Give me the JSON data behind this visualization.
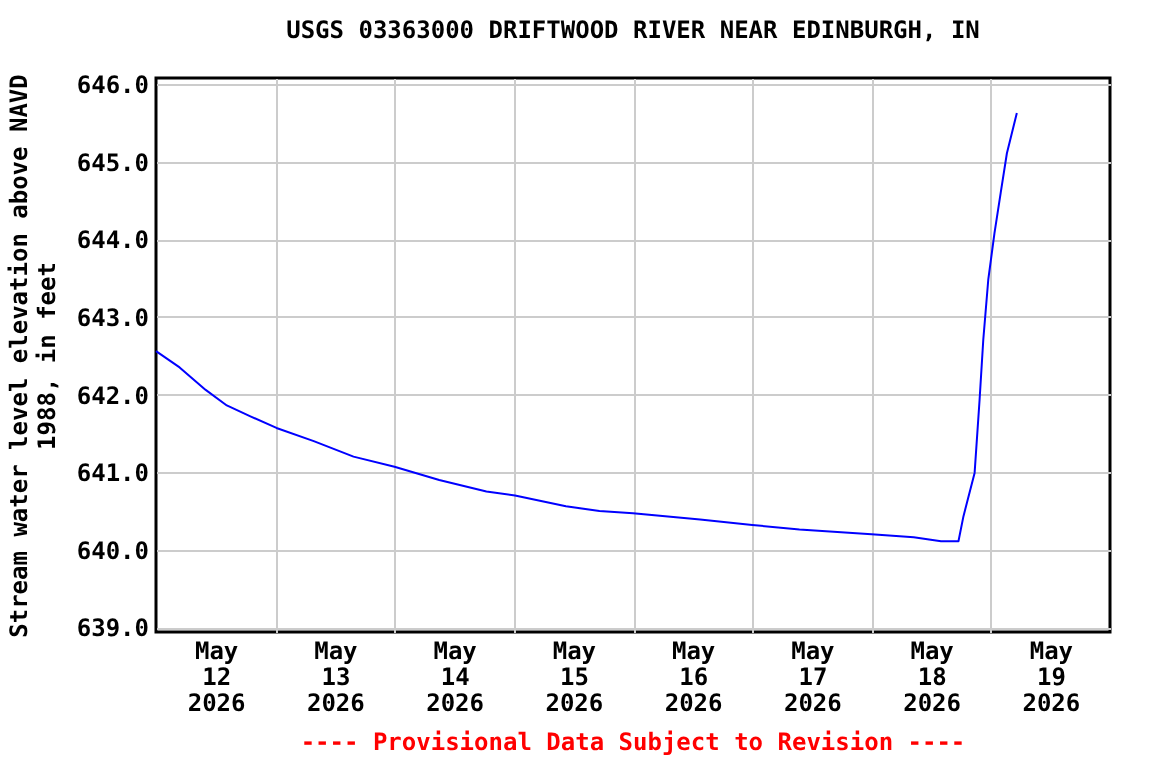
{
  "chart_data": {
    "type": "line",
    "title": "USGS 03363000 DRIFTWOOD RIVER NEAR EDINBURGH, IN",
    "ylabel": "Stream water level elevation above NAVD 1988, in feet",
    "annotations": [
      "---- Provisional Data Subject to Revision ----"
    ],
    "xlim": [
      "2026-05-12T00:00",
      "2026-05-20T00:00"
    ],
    "xticks": [
      {
        "value": "2026-05-12T12:00",
        "label": "May 12 2026"
      },
      {
        "value": "2026-05-13T00:00",
        "label": null
      },
      {
        "value": "2026-05-13T12:00",
        "label": "May 13 2026"
      },
      {
        "value": "2026-05-14T00:00",
        "label": null
      },
      {
        "value": "2026-05-14T12:00",
        "label": "May 14 2026"
      },
      {
        "value": "2026-05-15T00:00",
        "label": null
      },
      {
        "value": "2026-05-15T12:00",
        "label": "May 15 2026"
      },
      {
        "value": "2026-05-16T00:00",
        "label": null
      },
      {
        "value": "2026-05-16T12:00",
        "label": "May 16 2026"
      },
      {
        "value": "2026-05-17T00:00",
        "label": null
      },
      {
        "value": "2026-05-17T12:00",
        "label": "May 17 2026"
      },
      {
        "value": "2026-05-18T00:00",
        "label": null
      },
      {
        "value": "2026-05-18T12:00",
        "label": "May 18 2026"
      },
      {
        "value": "2026-05-19T00:00",
        "label": null
      },
      {
        "value": "2026-05-19T12:00",
        "label": "May 19 2026"
      }
    ],
    "ylim": [
      638.94,
      646.08
    ],
    "yticks": [
      {
        "value": 639,
        "label": "639.0"
      },
      {
        "value": 640,
        "label": "640.0"
      },
      {
        "value": 641,
        "label": "641.0"
      },
      {
        "value": 642,
        "label": "642.0"
      },
      {
        "value": 643,
        "label": "643.0"
      },
      {
        "value": 644,
        "label": "644.0"
      },
      {
        "value": 645,
        "label": "645.0"
      },
      {
        "value": 646,
        "label": "646.0"
      }
    ],
    "grid": true,
    "series": [
      {
        "color": "#0000ff",
        "x": [
          "2026-05-12T00:00",
          "2026-05-12T04:45",
          "2026-05-12T10:00",
          "2026-05-12T14:15",
          "2026-05-12T19:00",
          "2026-05-13T00:15",
          "2026-05-13T07:45",
          "2026-05-13T15:45",
          "2026-05-14T00:00",
          "2026-05-14T09:00",
          "2026-05-14T18:30",
          "2026-05-15T00:15",
          "2026-05-15T10:30",
          "2026-05-15T17:15",
          "2026-05-16T00:00",
          "2026-05-16T13:30",
          "2026-05-17T00:00",
          "2026-05-17T09:30",
          "2026-05-18T00:00",
          "2026-05-18T08:30",
          "2026-05-18T14:00",
          "2026-05-18T17:30",
          "2026-05-18T18:30",
          "2026-05-18T20:45",
          "2026-05-18T21:45",
          "2026-05-18T22:30",
          "2026-05-18T23:30",
          "2026-05-19T00:45",
          "2026-05-19T02:00",
          "2026-05-19T03:15",
          "2026-05-19T05:15"
        ],
        "values": [
          642.56,
          642.35,
          642.06,
          641.86,
          641.72,
          641.57,
          641.4,
          641.2,
          641.07,
          640.9,
          640.75,
          640.7,
          640.56,
          640.5,
          640.47,
          640.39,
          640.32,
          640.26,
          640.2,
          640.16,
          640.11,
          640.11,
          640.43,
          640.99,
          641.93,
          642.71,
          643.48,
          644.08,
          644.6,
          645.11,
          645.63
        ]
      }
    ]
  }
}
